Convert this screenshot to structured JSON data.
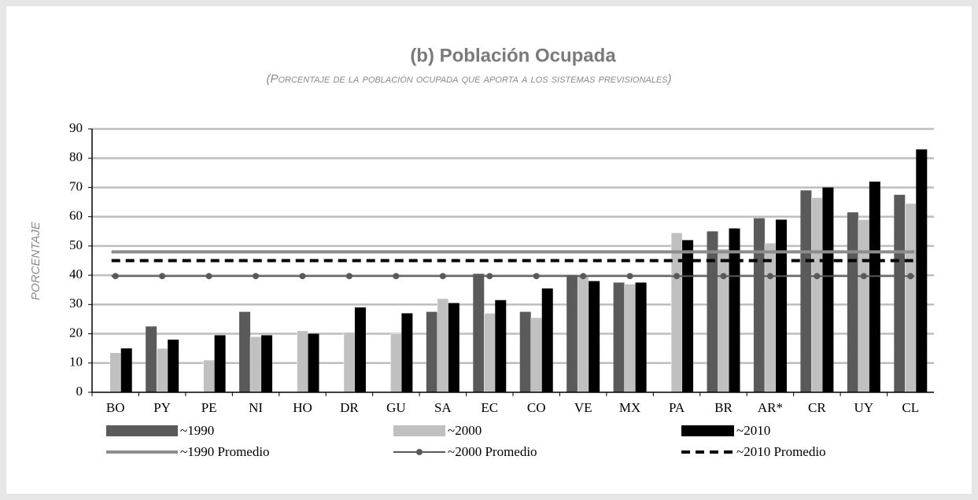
{
  "chart_data": {
    "type": "bar",
    "title": "(b) Población Ocupada",
    "subtitle": "(Porcentaje de la población ocupada que aporta a los sistemas previsionales)",
    "y_label": "PORCENTAJE",
    "categories": [
      "BO",
      "PY",
      "PE",
      "NI",
      "HO",
      "DR",
      "GU",
      "SA",
      "EC",
      "CO",
      "VE",
      "MX",
      "PA",
      "BR",
      "AR*",
      "CR",
      "UY",
      "CL"
    ],
    "series": [
      {
        "name": "~1990",
        "color": "#5a5a5a",
        "values": [
          null,
          22.5,
          null,
          27.5,
          null,
          null,
          null,
          27.5,
          40.5,
          27.5,
          40,
          37.5,
          null,
          55,
          59.5,
          69,
          61.5,
          67.5
        ]
      },
      {
        "name": "~2000",
        "color": "#c0c0c0",
        "values": [
          13.5,
          15,
          11,
          19,
          21,
          20.5,
          20,
          32,
          27,
          25.5,
          40,
          37,
          54.5,
          49,
          51,
          66.5,
          59,
          64.5
        ]
      },
      {
        "name": "~2010",
        "color": "#000000",
        "values": [
          15,
          18,
          19.5,
          19.5,
          20,
          29,
          27,
          30.5,
          31.5,
          35.5,
          38,
          37.5,
          52,
          56,
          59,
          70,
          72,
          83
        ]
      }
    ],
    "reference_lines": [
      {
        "name": "~1990 Promedio",
        "value": 48,
        "color": "#8c8c8c",
        "style": "solid"
      },
      {
        "name": "~2000 Promedio",
        "value": 39.7,
        "color": "#595959",
        "style": "marker"
      },
      {
        "name": "~2010 Promedio",
        "value": 45,
        "color": "#000000",
        "style": "dashed"
      }
    ],
    "ylim": [
      0,
      90
    ],
    "yticks": [
      0,
      10,
      20,
      30,
      40,
      50,
      60,
      70,
      80,
      90
    ],
    "grid": true
  }
}
